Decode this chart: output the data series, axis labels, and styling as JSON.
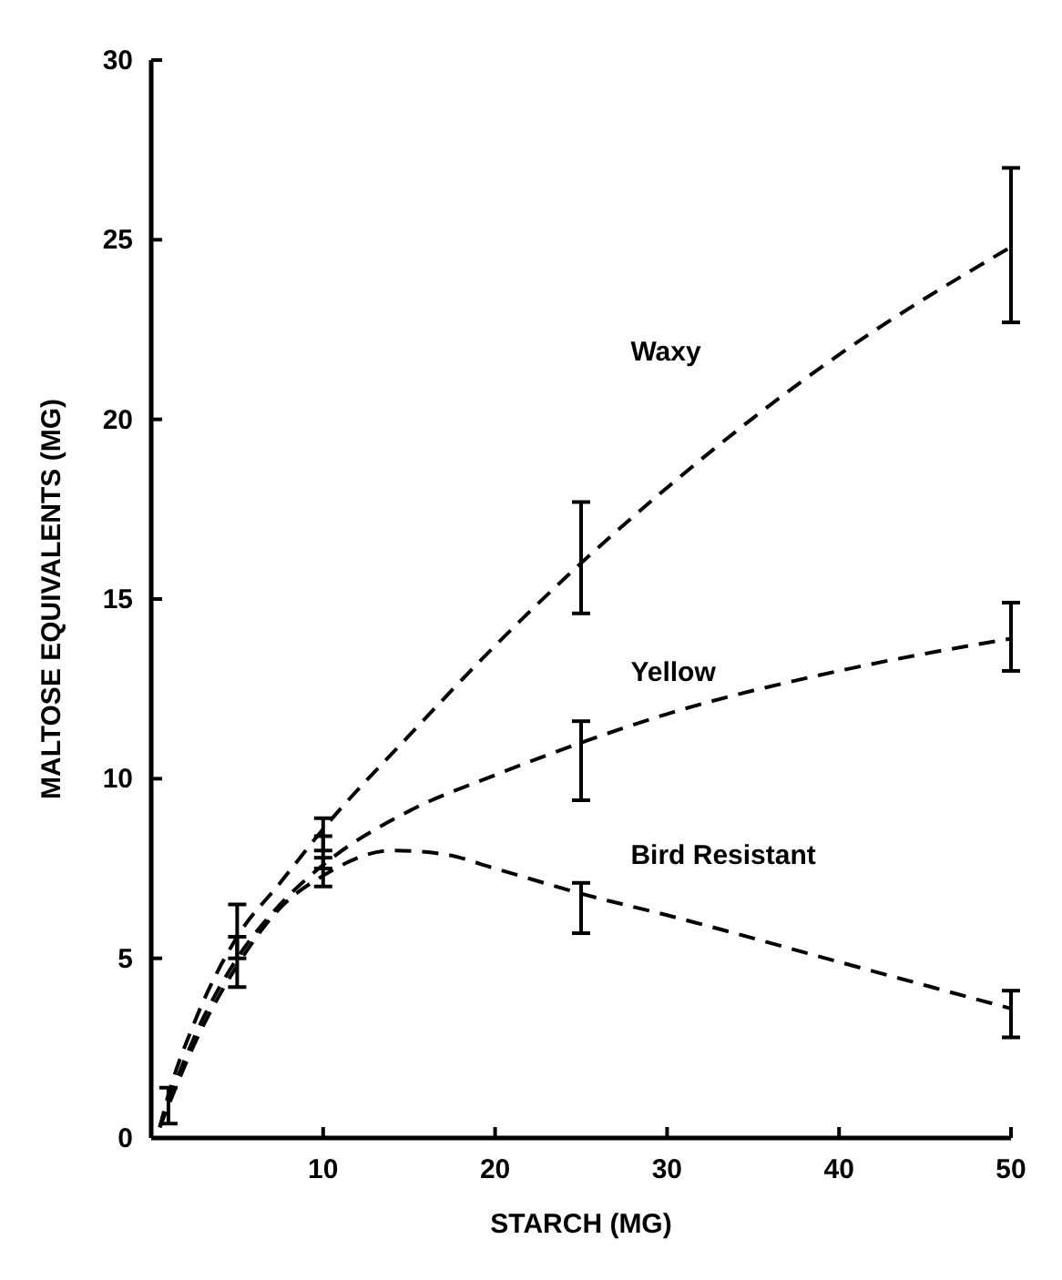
{
  "chart_data": {
    "type": "line",
    "xlabel": "STARCH (MG)",
    "ylabel": "MALTOSE EQUIVALENTS (MG)",
    "xlim": [
      0,
      50
    ],
    "ylim": [
      0,
      30
    ],
    "xticks": [
      10,
      20,
      30,
      40,
      50
    ],
    "yticks": [
      0,
      5,
      10,
      15,
      20,
      25,
      30
    ],
    "grid": false,
    "legend": false,
    "marker": "none",
    "line_style": "dashed",
    "series": [
      {
        "name": "Waxy",
        "color": "#000000",
        "x": [
          0.5,
          1,
          2.5,
          5,
          7.5,
          10,
          15,
          20,
          25,
          30,
          40,
          50
        ],
        "values": [
          0.3,
          1.2,
          3.2,
          5.6,
          7.1,
          8.6,
          11.2,
          13.7,
          16,
          18.1,
          21.8,
          24.8
        ],
        "errors": [
          null,
          [
            0.4,
            1.4
          ],
          null,
          [
            5.0,
            6.5
          ],
          null,
          [
            8.0,
            8.9
          ],
          null,
          null,
          [
            14.6,
            17.7
          ],
          null,
          null,
          [
            22.7,
            27.0
          ]
        ]
      },
      {
        "name": "Yellow",
        "color": "#000000",
        "x": [
          0.5,
          1,
          2.5,
          5,
          7.5,
          10,
          15,
          20,
          25,
          30,
          40,
          50
        ],
        "values": [
          0.3,
          1.0,
          2.8,
          5.0,
          6.5,
          7.6,
          9.1,
          10.1,
          11,
          11.8,
          13.0,
          13.9
        ],
        "errors": [
          null,
          null,
          null,
          null,
          null,
          [
            7.5,
            8.4
          ],
          null,
          null,
          [
            9.4,
            11.6
          ],
          null,
          null,
          [
            13.0,
            14.9
          ]
        ]
      },
      {
        "name": "Bird Resistant",
        "color": "#000000",
        "x": [
          0.5,
          1,
          2.5,
          5,
          7.5,
          10,
          14,
          17,
          20,
          25,
          30,
          40,
          50
        ],
        "values": [
          0.3,
          0.9,
          2.6,
          4.8,
          6.4,
          7.3,
          8.0,
          7.9,
          7.5,
          6.8,
          6.2,
          4.9,
          3.6
        ],
        "errors": [
          null,
          null,
          null,
          [
            4.2,
            5.6
          ],
          null,
          [
            7.0,
            7.8
          ],
          null,
          null,
          null,
          [
            5.7,
            7.1
          ],
          null,
          null,
          [
            2.8,
            4.1
          ]
        ]
      }
    ]
  }
}
